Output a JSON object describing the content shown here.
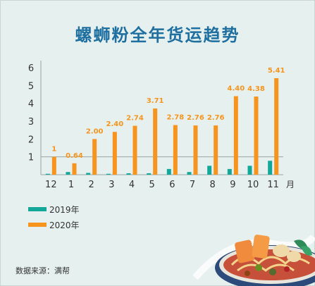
{
  "header": {
    "title": "螺蛳粉全年货运趋势"
  },
  "source": "数据来源：满帮",
  "colors": {
    "series2019": "#13a89a",
    "series2020": "#f7941d",
    "title": "#1f6fa0",
    "bg": "#e6f0ee"
  },
  "chart_data": {
    "type": "bar",
    "title": "螺蛳粉全年货运趋势",
    "categories": [
      "12",
      "1",
      "2",
      "3",
      "4",
      "5",
      "6",
      "7",
      "8",
      "9",
      "10",
      "11"
    ],
    "x_unit": "月",
    "series": [
      {
        "name": "2019年",
        "values": [
          0.05,
          0.15,
          0.1,
          0.05,
          0.08,
          0.08,
          0.32,
          0.15,
          0.5,
          0.32,
          0.5,
          0.78
        ]
      },
      {
        "name": "2020年",
        "values": [
          1,
          0.64,
          2.0,
          2.4,
          2.74,
          3.71,
          2.78,
          2.76,
          2.76,
          4.4,
          4.38,
          5.41
        ]
      }
    ],
    "data_labels_2020": [
      "1",
      "0.64",
      "2.00",
      "2.40",
      "2.74",
      "3.71",
      "2.78",
      "2.76",
      "2.76",
      "4.40",
      "4.38",
      "5.41"
    ],
    "y_ticks": [
      "1",
      "2",
      "3",
      "4",
      "5",
      "6"
    ],
    "ylim": [
      0,
      6
    ],
    "reference_line": 1,
    "grid": false,
    "legend_position": "bottom-left"
  },
  "legend": [
    {
      "label": "2019年",
      "color": "#13a89a"
    },
    {
      "label": "2020年",
      "color": "#f7941d"
    }
  ]
}
